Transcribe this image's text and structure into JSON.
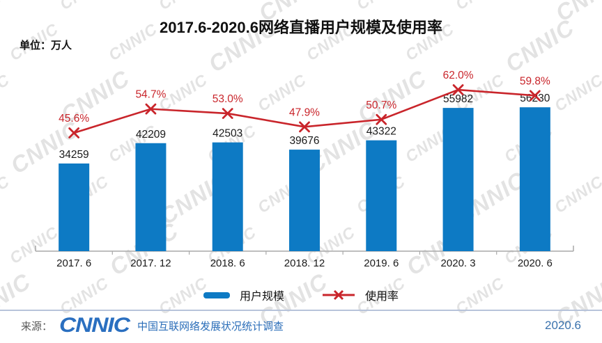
{
  "page": {
    "title": "2017.6-2020.6网络直播用户规模及使用率",
    "unit_label": "单位：万人",
    "watermark_text": "CNNIC"
  },
  "chart_data": {
    "type": "bar",
    "combo": "bar-with-line-overlay",
    "title": "2017.6-2020.6网络直播用户规模及使用率",
    "xlabel": "",
    "ylabel": "万人",
    "categories": [
      "2017.6",
      "2017.12",
      "2018.6",
      "2018.12",
      "2019.6",
      "2020.3",
      "2020.6"
    ],
    "category_display": [
      "2017. 6",
      "2017. 12",
      "2018. 6",
      "2018. 12",
      "2019. 6",
      "2020. 3",
      "2020. 6"
    ],
    "series": [
      {
        "name": "用户规模",
        "type": "bar",
        "unit": "万人",
        "values": [
          34259,
          42209,
          42503,
          39676,
          43322,
          55982,
          56230
        ]
      },
      {
        "name": "使用率",
        "type": "line",
        "unit": "%",
        "values": [
          45.6,
          54.7,
          53.0,
          47.9,
          50.7,
          62.0,
          59.8
        ]
      }
    ],
    "value_axis_visible": false,
    "percent_axis_visible": false,
    "grid": false,
    "legend_position": "bottom",
    "data_labels_shown": true
  },
  "legend": {
    "items": [
      {
        "label": "用户规模",
        "marker": "bar"
      },
      {
        "label": "使用率",
        "marker": "line-x"
      }
    ]
  },
  "footer": {
    "source_label": "来源：",
    "logo_text": "CNNIC",
    "org_text": "中国互联网络发展状况统计调查",
    "date_text": "2020.6"
  },
  "colors": {
    "bar": "#0d7ac4",
    "line": "#c9252b",
    "value_label": "#1a1a1a",
    "category_label": "#1a1a1a",
    "axis": "#a9a9a9",
    "title": "#111111",
    "source_gray": "#595959",
    "logo_blue": "#2a6fc0",
    "footer_text_blue": "#2a6db8",
    "date_blue": "#3a72ad",
    "separator": "#b7c3da",
    "watermark": "#969696"
  }
}
